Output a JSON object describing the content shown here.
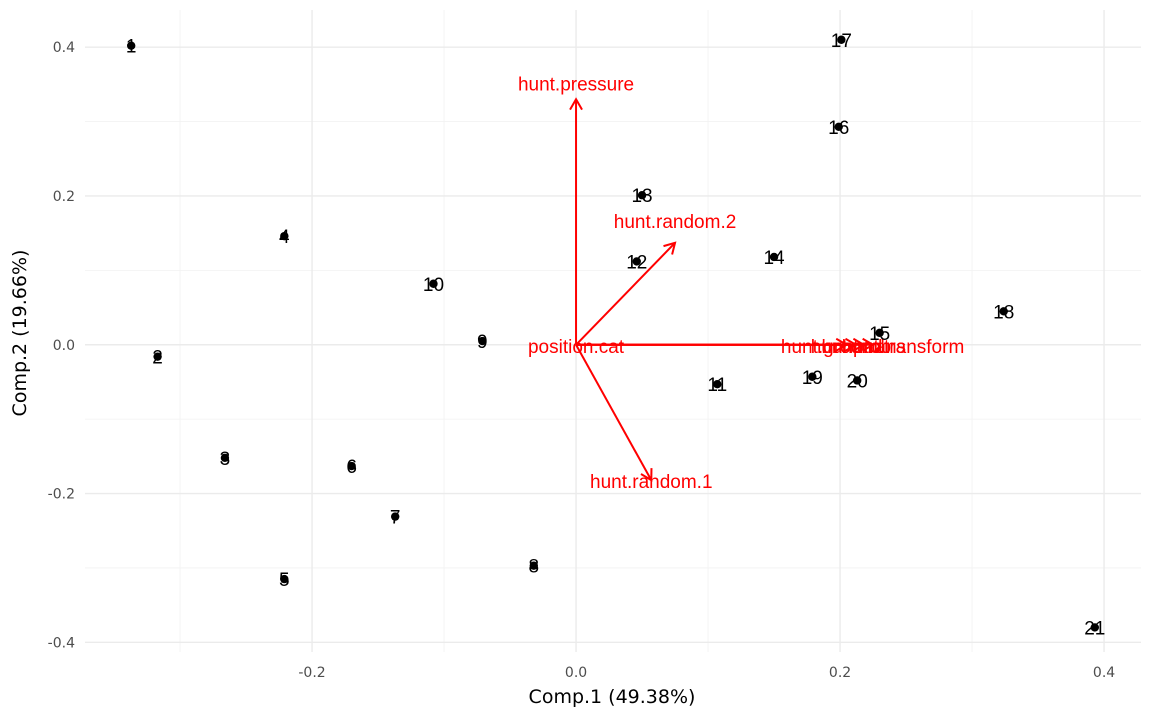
{
  "chart_data": {
    "type": "scatter",
    "xlabel": "Comp.1 (49.38%)",
    "ylabel": "Comp.2 (19.66%)",
    "xlim": [
      -0.372,
      0.428
    ],
    "ylim": [
      -0.413,
      0.45
    ],
    "x_ticks": [
      -0.2,
      0.0,
      0.2,
      0.4
    ],
    "x_tick_labels": [
      "-0.2",
      "0.0",
      "0.2",
      "0.4"
    ],
    "y_ticks": [
      -0.4,
      -0.2,
      0.0,
      0.2,
      0.4
    ],
    "y_tick_labels": [
      "-0.4",
      "-0.2",
      "0.0",
      "0.2",
      "0.4"
    ],
    "grid": true,
    "points": [
      {
        "label": "1",
        "x": -0.337,
        "y": 0.402
      },
      {
        "label": "2",
        "x": -0.317,
        "y": -0.016
      },
      {
        "label": "3",
        "x": -0.266,
        "y": -0.152
      },
      {
        "label": "4",
        "x": -0.221,
        "y": 0.146
      },
      {
        "label": "5",
        "x": -0.221,
        "y": -0.315
      },
      {
        "label": "6",
        "x": -0.17,
        "y": -0.163
      },
      {
        "label": "7",
        "x": -0.137,
        "y": -0.231
      },
      {
        "label": "8",
        "x": -0.032,
        "y": -0.297
      },
      {
        "label": "9",
        "x": -0.071,
        "y": 0.005
      },
      {
        "label": "10",
        "x": -0.108,
        "y": 0.082
      },
      {
        "label": "11",
        "x": 0.107,
        "y": -0.053
      },
      {
        "label": "12",
        "x": 0.046,
        "y": 0.112
      },
      {
        "label": "13",
        "x": 0.05,
        "y": 0.201
      },
      {
        "label": "14",
        "x": 0.15,
        "y": 0.118
      },
      {
        "label": "15",
        "x": 0.23,
        "y": 0.016
      },
      {
        "label": "16",
        "x": 0.199,
        "y": 0.293
      },
      {
        "label": "17",
        "x": 0.201,
        "y": 0.41
      },
      {
        "label": "18",
        "x": 0.324,
        "y": 0.045
      },
      {
        "label": "19",
        "x": 0.179,
        "y": -0.043
      },
      {
        "label": "20",
        "x": 0.213,
        "y": -0.048
      },
      {
        "label": "21",
        "x": 0.393,
        "y": -0.38
      }
    ],
    "loadings": [
      {
        "name": "hunt.pressure",
        "x": 0.0,
        "y": 0.33
      },
      {
        "name": "hunt.random.2",
        "x": 0.075,
        "y": 0.137
      },
      {
        "name": "hunt.random.1",
        "x": 0.057,
        "y": -0.182
      },
      {
        "name": "position.cat",
        "x": 0.0,
        "y": 0.0
      },
      {
        "name": "hunt.ground",
        "x": 0.205,
        "y": 0.0
      },
      {
        "name": "hunt.prob",
        "x": 0.212,
        "y": 0.0
      },
      {
        "name": "hunt.trans",
        "x": 0.218,
        "y": 0.0
      },
      {
        "name": "hunt.transform",
        "x": 0.225,
        "y": 0.0
      }
    ]
  }
}
